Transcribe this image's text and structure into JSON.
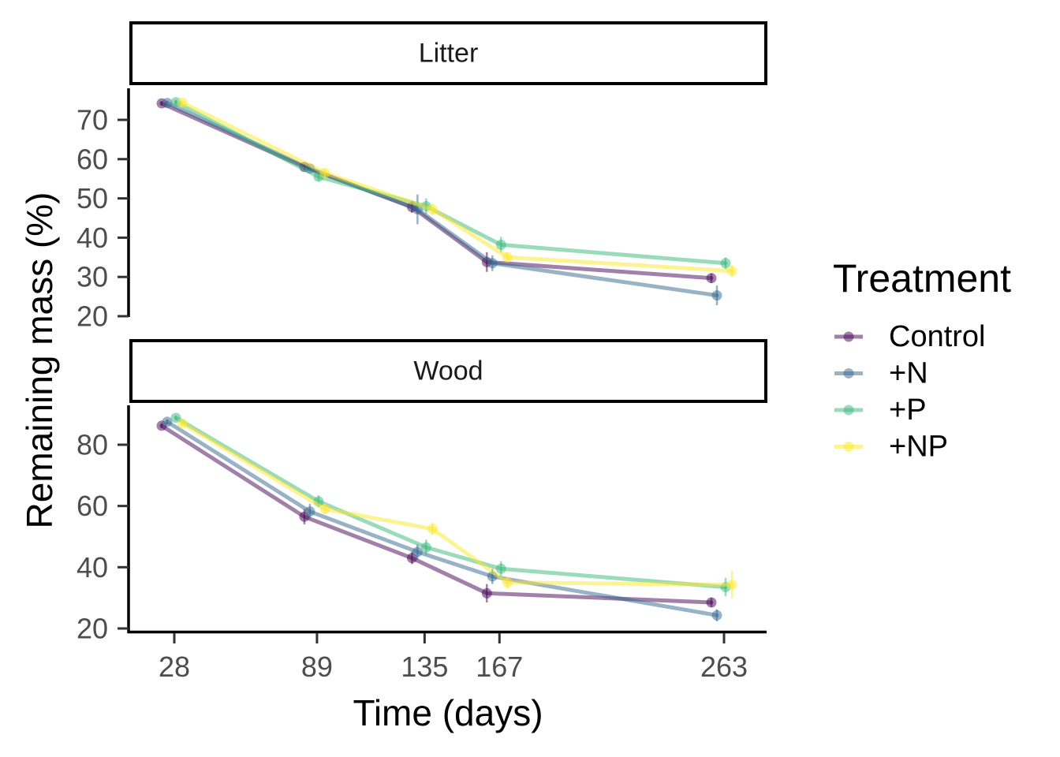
{
  "chart_data": {
    "type": "line",
    "xlabel": "Time (days)",
    "ylabel": "Remaining mass (%)",
    "x_ticks": [
      28,
      89,
      135,
      167,
      263
    ],
    "legend": {
      "title": "Treatment",
      "position": "right"
    },
    "series_colors": {
      "Control": "#440154",
      "+N": "#31688E",
      "+P": "#35B779",
      "+NP": "#FDE725"
    },
    "facets": [
      {
        "label": "Litter",
        "y_ticks": [
          20,
          30,
          40,
          50,
          60,
          70
        ],
        "series": [
          {
            "name": "Control",
            "points": [
              {
                "x": 28,
                "y": 74.2,
                "err": 0.6
              },
              {
                "x": 89,
                "y": 58.0,
                "err": 0.8
              },
              {
                "x": 135,
                "y": 47.8,
                "err": 1.5
              },
              {
                "x": 167,
                "y": 33.8,
                "err": 2.5
              },
              {
                "x": 263,
                "y": 29.7,
                "err": 1.2
              }
            ]
          },
          {
            "name": "+N",
            "points": [
              {
                "x": 28,
                "y": 74.3,
                "err": 0.6
              },
              {
                "x": 89,
                "y": 57.6,
                "err": 0.8
              },
              {
                "x": 135,
                "y": 47.2,
                "err": 3.8
              },
              {
                "x": 167,
                "y": 33.5,
                "err": 2.0
              },
              {
                "x": 263,
                "y": 25.3,
                "err": 2.5
              }
            ]
          },
          {
            "name": "+P",
            "points": [
              {
                "x": 28,
                "y": 74.5,
                "err": 0.6
              },
              {
                "x": 89,
                "y": 55.5,
                "err": 1.0
              },
              {
                "x": 135,
                "y": 48.0,
                "err": 2.0
              },
              {
                "x": 167,
                "y": 38.2,
                "err": 2.0
              },
              {
                "x": 263,
                "y": 33.5,
                "err": 1.5
              }
            ]
          },
          {
            "name": "+NP",
            "points": [
              {
                "x": 28,
                "y": 74.4,
                "err": 0.6
              },
              {
                "x": 89,
                "y": 56.5,
                "err": 1.0
              },
              {
                "x": 135,
                "y": 47.2,
                "err": 1.5
              },
              {
                "x": 167,
                "y": 35.0,
                "err": 1.2
              },
              {
                "x": 263,
                "y": 31.5,
                "err": 1.5
              }
            ]
          }
        ]
      },
      {
        "label": "Wood",
        "y_ticks": [
          20,
          40,
          60,
          80
        ],
        "series": [
          {
            "name": "Control",
            "points": [
              {
                "x": 28,
                "y": 86.2,
                "err": 0.8
              },
              {
                "x": 89,
                "y": 56.5,
                "err": 2.5
              },
              {
                "x": 135,
                "y": 43.0,
                "err": 2.0
              },
              {
                "x": 167,
                "y": 31.5,
                "err": 3.0
              },
              {
                "x": 263,
                "y": 28.5,
                "err": 1.5
              }
            ]
          },
          {
            "name": "+N",
            "points": [
              {
                "x": 28,
                "y": 87.5,
                "err": 0.8
              },
              {
                "x": 89,
                "y": 58.2,
                "err": 2.5
              },
              {
                "x": 135,
                "y": 45.0,
                "err": 2.5
              },
              {
                "x": 167,
                "y": 37.0,
                "err": 2.5
              },
              {
                "x": 263,
                "y": 24.3,
                "err": 2.0
              }
            ]
          },
          {
            "name": "+P",
            "points": [
              {
                "x": 28,
                "y": 88.8,
                "err": 0.8
              },
              {
                "x": 89,
                "y": 61.5,
                "err": 2.0
              },
              {
                "x": 135,
                "y": 46.5,
                "err": 2.5
              },
              {
                "x": 167,
                "y": 39.5,
                "err": 2.5
              },
              {
                "x": 263,
                "y": 33.5,
                "err": 3.0
              }
            ]
          },
          {
            "name": "+NP",
            "points": [
              {
                "x": 28,
                "y": 87.0,
                "err": 0.8
              },
              {
                "x": 89,
                "y": 59.0,
                "err": 1.5
              },
              {
                "x": 135,
                "y": 52.5,
                "err": 2.0
              },
              {
                "x": 167,
                "y": 35.0,
                "err": 2.0
              },
              {
                "x": 263,
                "y": 34.3,
                "err": 4.5
              }
            ]
          }
        ]
      }
    ]
  }
}
